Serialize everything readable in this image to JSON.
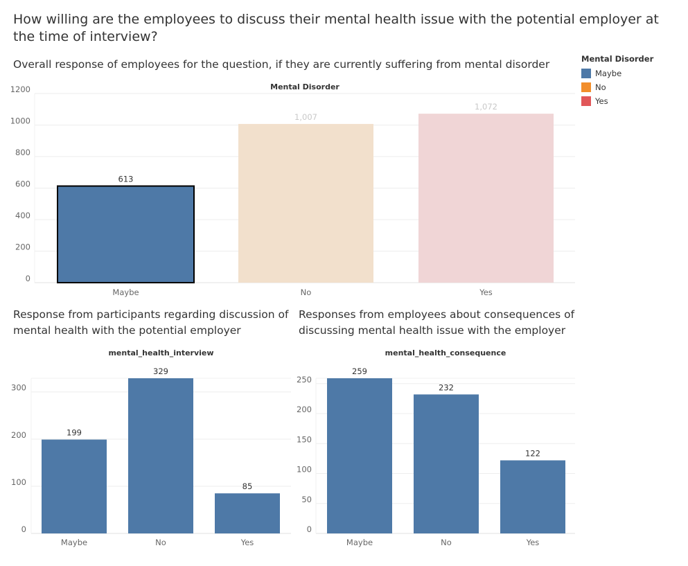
{
  "page": {
    "title": "How willing are the employees to discuss their mental health issue with the potential employer at the time of interview?"
  },
  "legend": {
    "title": "Mental Disorder",
    "items": [
      {
        "label": "Maybe",
        "color": "#4e79a7"
      },
      {
        "label": "No",
        "color": "#f28e2b"
      },
      {
        "label": "Yes",
        "color": "#e15759"
      }
    ]
  },
  "chart_data": [
    {
      "type": "bar",
      "subtitle": "Overall response of employees for the question, if they are currently suffering from mental disorder",
      "header": "Mental Disorder",
      "categories": [
        "Maybe",
        "No",
        "Yes"
      ],
      "values": [
        613,
        1007,
        1072
      ],
      "value_labels": [
        "613",
        "1,007",
        "1,072"
      ],
      "colors": [
        "#4e79a7",
        "#f2e0cc",
        "#f0d5d6"
      ],
      "highlighted": "Maybe",
      "yticks": [
        0,
        200,
        400,
        600,
        800,
        1000,
        1200
      ],
      "ylim": [
        0,
        1200
      ],
      "grid": true
    },
    {
      "type": "bar",
      "subtitle": "Response from participants regarding discussion of mental health with the potential employer",
      "header": "mental_health_interview",
      "categories": [
        "Maybe",
        "No",
        "Yes"
      ],
      "values": [
        199,
        329,
        85
      ],
      "value_labels": [
        "199",
        "329",
        "85"
      ],
      "colors": [
        "#4e79a7",
        "#4e79a7",
        "#4e79a7"
      ],
      "yticks": [
        0,
        100,
        200,
        300
      ],
      "ylim": [
        0,
        329
      ],
      "grid": true
    },
    {
      "type": "bar",
      "subtitle": "Responses from employees about consequences of discussing mental health issue with the employer",
      "header": "mental_health_consequence",
      "categories": [
        "Maybe",
        "No",
        "Yes"
      ],
      "values": [
        259,
        232,
        122
      ],
      "value_labels": [
        "259",
        "232",
        "122"
      ],
      "colors": [
        "#4e79a7",
        "#4e79a7",
        "#4e79a7"
      ],
      "yticks": [
        0,
        50,
        100,
        150,
        200,
        250
      ],
      "ylim": [
        0,
        259
      ],
      "grid": true
    }
  ]
}
